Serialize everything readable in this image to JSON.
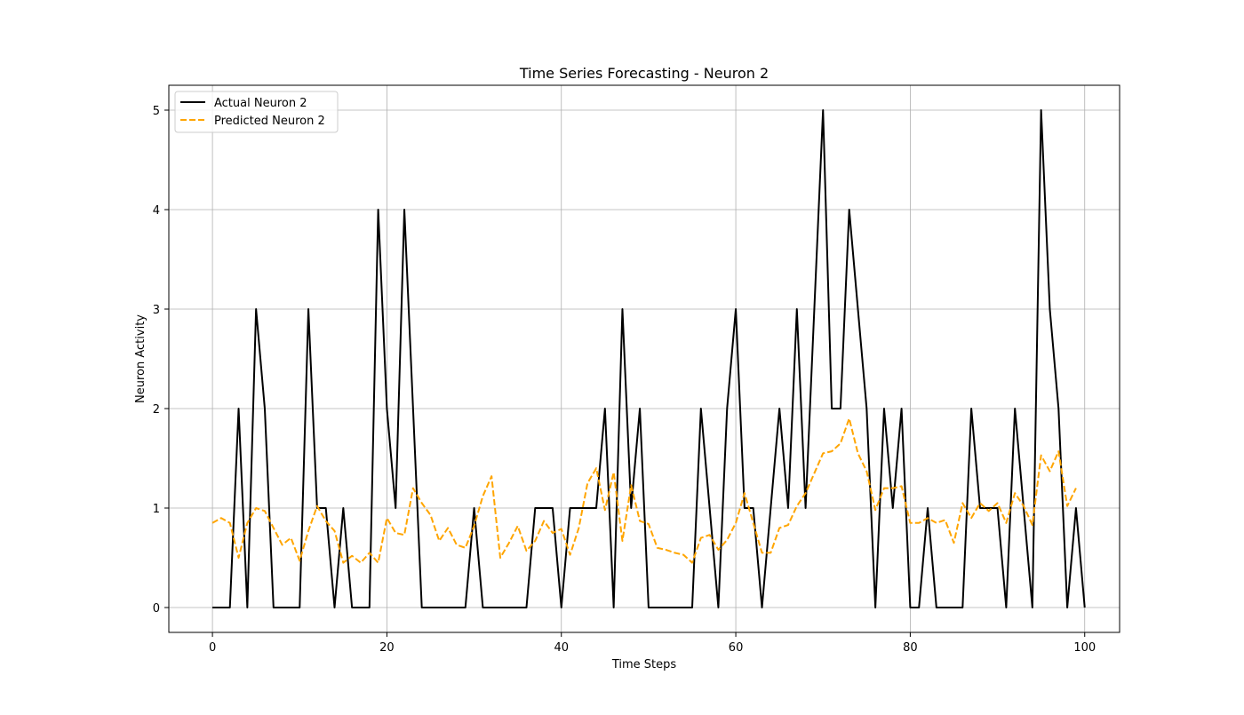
{
  "chart_data": {
    "type": "line",
    "title": "Time Series Forecasting - Neuron 2",
    "xlabel": "Time Steps",
    "ylabel": "Neuron Activity",
    "xlim": [
      -5,
      104
    ],
    "ylim": [
      -0.25,
      5.25
    ],
    "xticks": [
      0,
      20,
      40,
      60,
      80,
      100
    ],
    "yticks": [
      0,
      1,
      2,
      3,
      4,
      5
    ],
    "grid": true,
    "legend_position": "top-left",
    "series": [
      {
        "name": "Actual Neuron 2",
        "color": "#000000",
        "style": "solid",
        "y": [
          0,
          0,
          0,
          2,
          0,
          3,
          2,
          0,
          0,
          0,
          0,
          3,
          1,
          1,
          0,
          1,
          0,
          0,
          0,
          4,
          2,
          1,
          4,
          2,
          0,
          0,
          0,
          0,
          0,
          0,
          1,
          0,
          0,
          0,
          0,
          0,
          0,
          1,
          1,
          1,
          0,
          1,
          1,
          1,
          1,
          2,
          0,
          3,
          1,
          2,
          0,
          0,
          0,
          0,
          0,
          0,
          2,
          1,
          0,
          2,
          3,
          1,
          1,
          0,
          1,
          2,
          1,
          3,
          1,
          3,
          5,
          2,
          2,
          4,
          3,
          2,
          0,
          2,
          1,
          2,
          0,
          0,
          1,
          0,
          0,
          0,
          0,
          2,
          1,
          1,
          1,
          0,
          2,
          1,
          0,
          5,
          3,
          2,
          0,
          1,
          0
        ]
      },
      {
        "name": "Predicted Neuron 2",
        "color": "#ffa500",
        "style": "dashed",
        "y": [
          0.85,
          0.9,
          0.85,
          0.5,
          0.85,
          1.0,
          0.97,
          0.8,
          0.63,
          0.7,
          0.47,
          0.77,
          1.02,
          0.87,
          0.77,
          0.45,
          0.52,
          0.45,
          0.55,
          0.45,
          0.9,
          0.75,
          0.73,
          1.2,
          1.05,
          0.93,
          0.67,
          0.8,
          0.63,
          0.6,
          0.82,
          1.12,
          1.32,
          0.5,
          0.65,
          0.82,
          0.57,
          0.67,
          0.87,
          0.75,
          0.79,
          0.53,
          0.8,
          1.25,
          1.4,
          0.98,
          1.36,
          0.67,
          1.23,
          0.87,
          0.84,
          0.6,
          0.58,
          0.55,
          0.53,
          0.45,
          0.7,
          0.73,
          0.58,
          0.68,
          0.85,
          1.15,
          0.85,
          0.55,
          0.55,
          0.8,
          0.83,
          1.02,
          1.15,
          1.35,
          1.55,
          1.57,
          1.65,
          1.9,
          1.55,
          1.37,
          0.98,
          1.2,
          1.2,
          1.22,
          0.85,
          0.85,
          0.9,
          0.85,
          0.88,
          0.65,
          1.05,
          0.9,
          1.05,
          0.97,
          1.05,
          0.85,
          1.15,
          1.02,
          0.83,
          1.53,
          1.37,
          1.57,
          1.02,
          1.2
        ]
      }
    ]
  }
}
